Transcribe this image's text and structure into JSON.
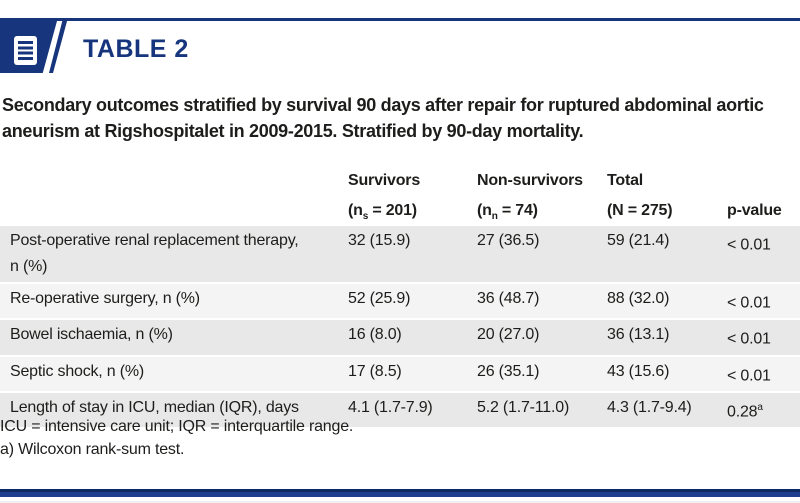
{
  "colors": {
    "navy": "#16357d",
    "row_odd": "#e8e8e8",
    "row_even": "#f4f4f4",
    "text": "#1d1d1b"
  },
  "badge": {
    "label": "TABLE 2",
    "icon": "table-lines-icon"
  },
  "title": "Secondary outcomes stratified by survival 90 days after repair for ruptured abdominal aortic aneurism at Rigshospitalet in 2009-2015. Stratified by 90-day mortality.",
  "table": {
    "columns": {
      "survivors": {
        "line1": "Survivors",
        "pre": "(n",
        "sub": "s",
        "post": " = 201)"
      },
      "non_survivors": {
        "line1": "Non-survivors",
        "pre": "(n",
        "sub": "n",
        "post": " = 74)"
      },
      "total": {
        "line1": "Total",
        "line2": "(N = 275)"
      },
      "p_value": {
        "line2": "p-value"
      }
    },
    "rows": [
      {
        "label": "Post-operative renal replacement therapy,\nn (%)",
        "survivors": "32 (15.9)",
        "non_survivors": "27 (36.5)",
        "total": "59 (21.4)",
        "p": "< 0.01",
        "p_sup": ""
      },
      {
        "label": "Re-operative surgery, n (%)",
        "survivors": "52 (25.9)",
        "non_survivors": "36 (48.7)",
        "total": "88 (32.0)",
        "p": "< 0.01",
        "p_sup": ""
      },
      {
        "label": "Bowel ischaemia, n (%)",
        "survivors": "16 (8.0)",
        "non_survivors": "20 (27.0)",
        "total": "36 (13.1)",
        "p": "< 0.01",
        "p_sup": ""
      },
      {
        "label": "Septic shock, n (%)",
        "survivors": "17 (8.5)",
        "non_survivors": "26 (35.1)",
        "total": "43 (15.6)",
        "p": "< 0.01",
        "p_sup": ""
      },
      {
        "label": "Length of stay in ICU, median (IQR), days",
        "survivors": "4.1 (1.7-7.9)",
        "non_survivors": "5.2 (1.7-11.0)",
        "total": "4.3 (1.7-9.4)",
        "p": "0.28",
        "p_sup": "a"
      }
    ]
  },
  "footnotes": [
    "ICU = intensive care unit; IQR = interquartile range.",
    "a) Wilcoxon rank-sum test."
  ]
}
